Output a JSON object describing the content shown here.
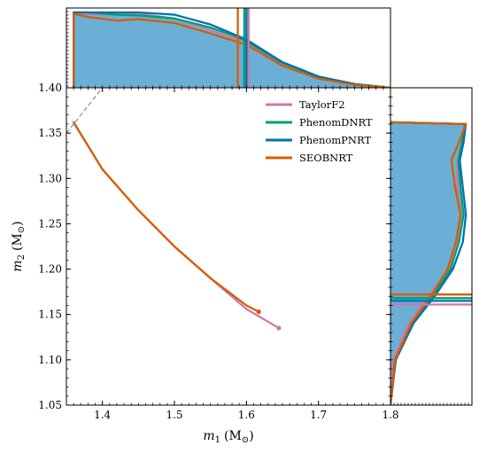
{
  "chart_data": {
    "type": "line",
    "main": {
      "xlabel": {
        "symbol": "m",
        "sub": "1",
        "unit": "(M",
        "unit_sub": "⊙",
        "close": ")"
      },
      "ylabel": {
        "symbol": "m",
        "sub": "2",
        "unit": "(M",
        "unit_sub": "⊙",
        "close": ")"
      },
      "xlim": [
        1.35,
        1.8
      ],
      "ylim": [
        1.05,
        1.4
      ],
      "xticks": [
        1.4,
        1.5,
        1.6,
        1.7,
        1.8
      ],
      "xtick_labels": [
        "1.4",
        "1.5",
        "1.6",
        "1.7",
        "1.8"
      ],
      "yticks": [
        1.05,
        1.1,
        1.15,
        1.2,
        1.25,
        1.3,
        1.35,
        1.4
      ],
      "ytick_labels": [
        "1.05",
        "1.10",
        "1.15",
        "1.20",
        "1.25",
        "1.30",
        "1.35",
        "1.40"
      ],
      "equal_mass_line": {
        "x": [
          1.35,
          1.4
        ],
        "y": [
          1.35,
          1.4
        ]
      },
      "series": [
        {
          "name": "TaylorF2",
          "color": "#cc79a7",
          "x": [
            1.36,
            1.4,
            1.45,
            1.5,
            1.55,
            1.6,
            1.645
          ],
          "y": [
            1.362,
            1.31,
            1.265,
            1.225,
            1.19,
            1.156,
            1.135
          ]
        },
        {
          "name": "SEOBNRT",
          "color": "#d55e00",
          "x": [
            1.36,
            1.4,
            1.45,
            1.5,
            1.55,
            1.6,
            1.617
          ],
          "y": [
            1.362,
            1.31,
            1.265,
            1.225,
            1.19,
            1.16,
            1.153
          ]
        }
      ],
      "series_endpoints": [
        {
          "name": "TaylorF2",
          "x": 1.645,
          "y": 1.135
        },
        {
          "name": "SEOBNRT",
          "x": 1.617,
          "y": 1.153
        }
      ]
    },
    "legend": {
      "placement": "top-right",
      "entries": [
        {
          "name": "TaylorF2",
          "color": "#cc79a7"
        },
        {
          "name": "PhenomDNRT",
          "color": "#009e73"
        },
        {
          "name": "PhenomPNRT",
          "color": "#0072b2"
        },
        {
          "name": "SEOBNRT",
          "color": "#d55e00"
        }
      ]
    },
    "marginal_m1": {
      "fill_color": "#6baed6",
      "x": [
        1.36,
        1.36,
        1.38,
        1.42,
        1.45,
        1.5,
        1.55,
        1.58,
        1.6,
        1.62,
        1.65,
        1.7,
        1.75,
        1.8
      ],
      "density": [
        0.0,
        1.0,
        1.0,
        0.99,
        0.99,
        0.93,
        0.78,
        0.68,
        0.61,
        0.5,
        0.32,
        0.14,
        0.05,
        0.0
      ],
      "curves": [
        {
          "name": "TaylorF2",
          "color": "#cc79a7",
          "density": [
            0.0,
            1.0,
            0.98,
            0.97,
            0.98,
            0.92,
            0.77,
            0.67,
            0.6,
            0.48,
            0.3,
            0.13,
            0.04,
            0.0
          ]
        },
        {
          "name": "PhenomDNRT",
          "color": "#009e73",
          "density": [
            0.0,
            1.0,
            1.0,
            0.97,
            0.96,
            0.92,
            0.8,
            0.7,
            0.62,
            0.5,
            0.33,
            0.14,
            0.05,
            0.0
          ]
        },
        {
          "name": "PhenomPNRT",
          "color": "#0072b2",
          "density": [
            0.0,
            1.0,
            1.0,
            1.0,
            1.0,
            0.97,
            0.84,
            0.72,
            0.64,
            0.52,
            0.34,
            0.15,
            0.05,
            0.0
          ]
        },
        {
          "name": "SEOBNRT",
          "color": "#d55e00",
          "density": [
            0.0,
            0.98,
            0.94,
            0.89,
            0.91,
            0.86,
            0.72,
            0.63,
            0.57,
            0.46,
            0.29,
            0.12,
            0.04,
            0.0
          ]
        }
      ],
      "vlines": [
        {
          "name": "SEOBNRT",
          "color": "#d55e00",
          "x": 1.588
        },
        {
          "name": "PhenomDNRT",
          "color": "#009e73",
          "x": 1.597
        },
        {
          "name": "PhenomPNRT",
          "color": "#0072b2",
          "x": 1.6
        },
        {
          "name": "TaylorF2",
          "color": "#cc79a7",
          "x": 1.603
        }
      ]
    },
    "marginal_m2": {
      "fill_color": "#6baed6",
      "y": [
        1.05,
        1.1,
        1.14,
        1.17,
        1.2,
        1.23,
        1.26,
        1.29,
        1.32,
        1.34,
        1.36,
        1.362
      ],
      "density": [
        0.0,
        0.07,
        0.3,
        0.55,
        0.8,
        0.9,
        0.95,
        0.93,
        0.9,
        0.95,
        0.98,
        0.0
      ],
      "curves": [
        {
          "name": "TaylorF2",
          "color": "#cc79a7",
          "density": [
            0.0,
            0.04,
            0.24,
            0.5,
            0.77,
            0.88,
            0.92,
            0.88,
            0.88,
            0.94,
            0.98,
            0.0
          ]
        },
        {
          "name": "PhenomDNRT",
          "color": "#009e73",
          "density": [
            0.0,
            0.06,
            0.28,
            0.55,
            0.79,
            0.9,
            0.96,
            0.92,
            0.89,
            0.94,
            0.98,
            0.0
          ]
        },
        {
          "name": "PhenomPNRT",
          "color": "#0072b2",
          "density": [
            0.0,
            0.07,
            0.3,
            0.58,
            0.82,
            0.95,
            0.99,
            0.95,
            0.91,
            0.96,
            0.99,
            0.0
          ]
        },
        {
          "name": "SEOBNRT",
          "color": "#d55e00",
          "density": [
            0.0,
            0.06,
            0.27,
            0.53,
            0.75,
            0.86,
            0.92,
            0.85,
            0.8,
            0.9,
            0.99,
            0.0
          ]
        }
      ],
      "hlines": [
        {
          "name": "SEOBNRT",
          "color": "#d55e00",
          "y": 1.172
        },
        {
          "name": "PhenomDNRT",
          "color": "#009e73",
          "y": 1.168
        },
        {
          "name": "PhenomPNRT",
          "color": "#0072b2",
          "y": 1.165
        },
        {
          "name": "TaylorF2",
          "color": "#cc79a7",
          "y": 1.161
        }
      ]
    }
  }
}
